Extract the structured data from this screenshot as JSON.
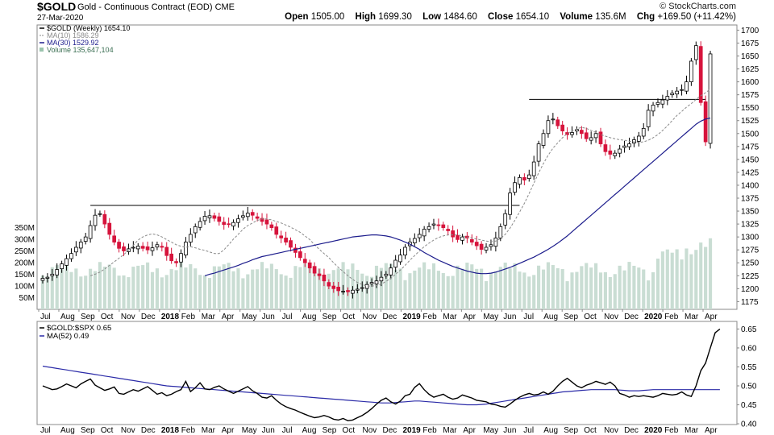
{
  "header": {
    "symbol": "$GOLD",
    "description": "Gold - Continuous Contract (EOD)",
    "exchange": "CME",
    "date": "27-Mar-2020",
    "brand": "© StockCharts.com",
    "open_label": "Open",
    "open": "1505.00",
    "high_label": "High",
    "high": "1699.30",
    "low_label": "Low",
    "low": "1484.60",
    "close_label": "Close",
    "close": "1654.10",
    "volume_label": "Volume",
    "volume": "135.6M",
    "chg_label": "Chg",
    "chg": "+169.50 (+11.42%)"
  },
  "colors": {
    "up": "#000000",
    "down": "#d6143c",
    "ma10": "#8a8a8a",
    "ma30": "#1c1c8c",
    "volume": "#c9ddd3",
    "ratio": "#000000",
    "ratio_ma": "#2b2ba8"
  },
  "chart_data": [
    {
      "type": "candlestick",
      "title": "$GOLD (Weekly) 1654.10",
      "legend": [
        {
          "name": "$GOLD (Weekly) 1654.10",
          "color": "#000000"
        },
        {
          "name": "MA(10) 1586.29",
          "color": "#8a8a8a"
        },
        {
          "name": "MA(30) 1529.92",
          "color": "#1c1c8c"
        },
        {
          "name": "Volume 135,647,104",
          "color": "#5b8c6e"
        }
      ],
      "legend_position": "top-left",
      "x_tick_labels": [
        "Jul",
        "Aug",
        "Sep",
        "Oct",
        "Nov",
        "Dec",
        "2018",
        "Feb",
        "Mar",
        "Apr",
        "May",
        "Jun",
        "Jul",
        "Aug",
        "Sep",
        "Oct",
        "Nov",
        "Dec",
        "2019",
        "Feb",
        "Mar",
        "Apr",
        "May",
        "Jun",
        "Jul",
        "Aug",
        "Sep",
        "Oct",
        "Nov",
        "Dec",
        "2020",
        "Feb",
        "Mar",
        "Apr"
      ],
      "y_ticks": [
        1175,
        1200,
        1225,
        1250,
        1275,
        1300,
        1325,
        1350,
        1375,
        1400,
        1425,
        1450,
        1475,
        1500,
        1525,
        1550,
        1575,
        1600,
        1625,
        1650,
        1675,
        1700
      ],
      "ylim": [
        1160,
        1710
      ],
      "volume_ticks": [
        "50M",
        "100M",
        "150M",
        "200M",
        "250M",
        "300M",
        "350M"
      ],
      "volume_ylim": [
        0,
        400
      ],
      "weeks": 141,
      "close": [
        1220,
        1222,
        1228,
        1237,
        1248,
        1258,
        1268,
        1280,
        1290,
        1300,
        1322,
        1342,
        1345,
        1325,
        1305,
        1290,
        1278,
        1273,
        1277,
        1280,
        1282,
        1278,
        1275,
        1279,
        1285,
        1280,
        1264,
        1254,
        1250,
        1268,
        1290,
        1305,
        1320,
        1330,
        1340,
        1341,
        1336,
        1330,
        1324,
        1324,
        1328,
        1335,
        1341,
        1346,
        1342,
        1336,
        1330,
        1325,
        1318,
        1305,
        1298,
        1290,
        1280,
        1270,
        1260,
        1250,
        1240,
        1230,
        1225,
        1215,
        1205,
        1200,
        1196,
        1195,
        1194,
        1197,
        1199,
        1202,
        1208,
        1212,
        1215,
        1222,
        1228,
        1240,
        1255,
        1265,
        1280,
        1290,
        1297,
        1305,
        1315,
        1320,
        1325,
        1322,
        1318,
        1312,
        1300,
        1295,
        1300,
        1298,
        1290,
        1283,
        1276,
        1280,
        1285,
        1298,
        1320,
        1345,
        1385,
        1405,
        1415,
        1410,
        1420,
        1445,
        1480,
        1500,
        1525,
        1528,
        1515,
        1505,
        1498,
        1502,
        1508,
        1500,
        1490,
        1492,
        1500,
        1480,
        1465,
        1460,
        1462,
        1470,
        1476,
        1480,
        1488,
        1495,
        1510,
        1545,
        1555,
        1560,
        1565,
        1572,
        1578,
        1582,
        1585,
        1600,
        1640,
        1670,
        1560,
        1484,
        1654
      ],
      "ma10": [
        1225,
        1228,
        1232,
        1238,
        1245,
        1252,
        1259,
        1266,
        1274,
        1284,
        1294,
        1300,
        1304,
        1306,
        1304,
        1300,
        1295,
        1290,
        1285,
        1282,
        1280,
        1281,
        1279,
        1276,
        1274,
        1271,
        1268,
        1268,
        1275,
        1285,
        1296,
        1305,
        1315,
        1322,
        1327,
        1332,
        1335,
        1335,
        1333,
        1330,
        1327,
        1323,
        1319,
        1314,
        1309,
        1302,
        1295,
        1285,
        1276,
        1268,
        1260,
        1250,
        1241,
        1233,
        1225,
        1218,
        1212,
        1208,
        1205,
        1205,
        1206,
        1209,
        1214,
        1220,
        1228,
        1236,
        1245,
        1255,
        1264,
        1273,
        1281,
        1288,
        1294,
        1299,
        1302,
        1304,
        1304,
        1304,
        1302,
        1300,
        1298,
        1296,
        1294,
        1292,
        1291,
        1292,
        1297,
        1305,
        1317,
        1332,
        1348,
        1365,
        1384,
        1404,
        1424,
        1442,
        1458,
        1472,
        1482,
        1492,
        1500,
        1505,
        1509,
        1512,
        1510,
        1506,
        1502,
        1498,
        1495,
        1492,
        1490,
        1488,
        1487,
        1485,
        1484,
        1483,
        1484,
        1487,
        1492,
        1498,
        1506,
        1515,
        1525,
        1535,
        1543,
        1551,
        1558,
        1566,
        1573,
        1579,
        1586
      ],
      "ma30": [
        1225,
        1228,
        1230,
        1233,
        1236,
        1239,
        1242,
        1245,
        1249,
        1252,
        1256,
        1259,
        1262,
        1264,
        1266,
        1268,
        1270,
        1272,
        1274,
        1276,
        1278,
        1280,
        1282,
        1284,
        1286,
        1288,
        1290,
        1292,
        1294,
        1296,
        1298,
        1300,
        1301,
        1302,
        1303,
        1304,
        1304,
        1303,
        1302,
        1300,
        1297,
        1294,
        1290,
        1286,
        1281,
        1276,
        1270,
        1265,
        1260,
        1255,
        1251,
        1247,
        1243,
        1240,
        1237,
        1234,
        1232,
        1230,
        1229,
        1229,
        1230,
        1232,
        1235,
        1238,
        1241,
        1245,
        1249,
        1253,
        1257,
        1261,
        1266,
        1271,
        1276,
        1282,
        1288,
        1295,
        1302,
        1310,
        1318,
        1326,
        1334,
        1342,
        1350,
        1358,
        1366,
        1374,
        1382,
        1390,
        1398,
        1406,
        1414,
        1422,
        1430,
        1438,
        1446,
        1454,
        1462,
        1470,
        1478,
        1486,
        1494,
        1502,
        1510,
        1518,
        1524,
        1528,
        1530
      ]
    },
    {
      "type": "line",
      "title": "$GOLD:$SPX 0.65",
      "legend": [
        {
          "name": "$GOLD:$SPX 0.65",
          "color": "#000000"
        },
        {
          "name": "MA(52) 0.49",
          "color": "#2b2ba8"
        }
      ],
      "legend_position": "top-left",
      "y_ticks": [
        0.4,
        0.45,
        0.5,
        0.55,
        0.6,
        0.65
      ],
      "ylim": [
        0.398,
        0.67
      ],
      "x_tick_labels": [
        "Jul",
        "Aug",
        "Sep",
        "Oct",
        "Nov",
        "Dec",
        "2018",
        "Feb",
        "Mar",
        "Apr",
        "May",
        "Jun",
        "Jul",
        "Aug",
        "Sep",
        "Oct",
        "Nov",
        "Dec",
        "2019",
        "Feb",
        "Mar",
        "Apr",
        "May",
        "Jun",
        "Jul",
        "Aug",
        "Sep",
        "Oct",
        "Nov",
        "Dec",
        "2020",
        "Feb",
        "Mar",
        "Apr"
      ],
      "ratio": [
        0.5,
        0.495,
        0.49,
        0.492,
        0.498,
        0.505,
        0.5,
        0.495,
        0.505,
        0.512,
        0.518,
        0.502,
        0.495,
        0.488,
        0.492,
        0.497,
        0.48,
        0.478,
        0.484,
        0.49,
        0.486,
        0.492,
        0.498,
        0.488,
        0.478,
        0.482,
        0.474,
        0.478,
        0.485,
        0.49,
        0.512,
        0.485,
        0.495,
        0.508,
        0.492,
        0.49,
        0.496,
        0.5,
        0.492,
        0.486,
        0.48,
        0.486,
        0.492,
        0.498,
        0.487,
        0.48,
        0.47,
        0.468,
        0.474,
        0.462,
        0.452,
        0.445,
        0.44,
        0.436,
        0.43,
        0.425,
        0.42,
        0.416,
        0.418,
        0.422,
        0.418,
        0.412,
        0.41,
        0.414,
        0.408,
        0.41,
        0.416,
        0.422,
        0.43,
        0.44,
        0.452,
        0.462,
        0.468,
        0.458,
        0.452,
        0.46,
        0.474,
        0.478,
        0.496,
        0.506,
        0.49,
        0.478,
        0.47,
        0.474,
        0.478,
        0.47,
        0.465,
        0.468,
        0.476,
        0.472,
        0.468,
        0.462,
        0.46,
        0.458,
        0.452,
        0.45,
        0.446,
        0.444,
        0.452,
        0.462,
        0.47,
        0.476,
        0.48,
        0.476,
        0.478,
        0.484,
        0.478,
        0.486,
        0.5,
        0.512,
        0.52,
        0.51,
        0.5,
        0.495,
        0.502,
        0.506,
        0.512,
        0.508,
        0.504,
        0.51,
        0.5,
        0.48,
        0.476,
        0.47,
        0.474,
        0.472,
        0.474,
        0.472,
        0.47,
        0.474,
        0.48,
        0.478,
        0.476,
        0.478,
        0.484,
        0.476,
        0.472,
        0.5,
        0.54,
        0.56,
        0.6,
        0.64,
        0.65
      ],
      "ma52": [
        0.552,
        0.55,
        0.548,
        0.546,
        0.544,
        0.542,
        0.54,
        0.538,
        0.536,
        0.534,
        0.532,
        0.53,
        0.528,
        0.526,
        0.524,
        0.522,
        0.52,
        0.518,
        0.516,
        0.514,
        0.512,
        0.51,
        0.508,
        0.506,
        0.504,
        0.502,
        0.5,
        0.499,
        0.498,
        0.497,
        0.496,
        0.495,
        0.494,
        0.493,
        0.492,
        0.491,
        0.49,
        0.489,
        0.488,
        0.487,
        0.486,
        0.485,
        0.484,
        0.483,
        0.482,
        0.481,
        0.48,
        0.479,
        0.478,
        0.477,
        0.476,
        0.475,
        0.474,
        0.473,
        0.472,
        0.471,
        0.47,
        0.469,
        0.468,
        0.467,
        0.466,
        0.465,
        0.464,
        0.463,
        0.462,
        0.461,
        0.46,
        0.459,
        0.458,
        0.457,
        0.456,
        0.455,
        0.455,
        0.455,
        0.456,
        0.457,
        0.458,
        0.459,
        0.46,
        0.46,
        0.459,
        0.458,
        0.457,
        0.456,
        0.455,
        0.454,
        0.453,
        0.452,
        0.451,
        0.45,
        0.45,
        0.45,
        0.451,
        0.452,
        0.454,
        0.456,
        0.458,
        0.46,
        0.462,
        0.464,
        0.466,
        0.468,
        0.47,
        0.472,
        0.474,
        0.476,
        0.478,
        0.48,
        0.482,
        0.484,
        0.485,
        0.486,
        0.487,
        0.488,
        0.489,
        0.49,
        0.49,
        0.49,
        0.49,
        0.49,
        0.49,
        0.489,
        0.488,
        0.487,
        0.487,
        0.487,
        0.488,
        0.489,
        0.49,
        0.49,
        0.49,
        0.49,
        0.49,
        0.49,
        0.49,
        0.49,
        0.49,
        0.49,
        0.49,
        0.49,
        0.49,
        0.49,
        0.49
      ]
    }
  ]
}
